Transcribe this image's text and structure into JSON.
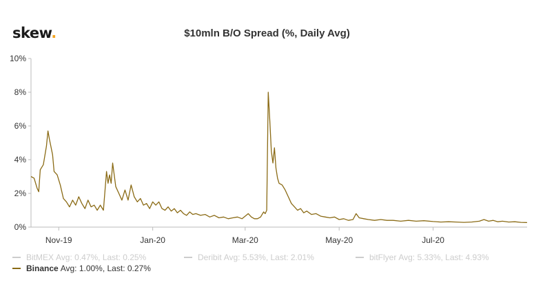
{
  "logo": {
    "text": "skew",
    "dot": "."
  },
  "chart_data": {
    "type": "line",
    "title": "$10mln B/O Spread (%, Daily Avg)",
    "xlabel": "",
    "ylabel": "",
    "ylim": [
      0,
      10
    ],
    "ytick_values": [
      0,
      2,
      4,
      6,
      8,
      10
    ],
    "ytick_labels": [
      "0%",
      "2%",
      "4%",
      "6%",
      "8%",
      "10%"
    ],
    "xlim": [
      "2019-10-14",
      "2020-08-31"
    ],
    "xticks": [
      {
        "date": "2019-11-01",
        "label": "Nov-19"
      },
      {
        "date": "2020-01-01",
        "label": "Jan-20"
      },
      {
        "date": "2020-03-01",
        "label": "Mar-20"
      },
      {
        "date": "2020-05-01",
        "label": "May-20"
      },
      {
        "date": "2020-07-01",
        "label": "Jul-20"
      }
    ],
    "grid": false,
    "legend_position": "bottom-left",
    "series": [
      {
        "name": "BitMEX",
        "stats": "Avg: 0.47%, Last: 0.25%",
        "color": "#cccccc",
        "visible": false
      },
      {
        "name": "Deribit",
        "stats": "Avg: 5.53%, Last: 2.01%",
        "color": "#cccccc",
        "visible": false
      },
      {
        "name": "bitFlyer",
        "stats": "Avg: 5.33%, Last: 4.93%",
        "color": "#cccccc",
        "visible": false
      },
      {
        "name": "Binance",
        "stats": "Avg: 1.00%, Last: 0.27%",
        "color": "#8a6a14",
        "visible": true,
        "points": [
          [
            "2019-10-14",
            3.0
          ],
          [
            "2019-10-16",
            2.9
          ],
          [
            "2019-10-18",
            2.3
          ],
          [
            "2019-10-19",
            2.1
          ],
          [
            "2019-10-20",
            3.4
          ],
          [
            "2019-10-22",
            3.7
          ],
          [
            "2019-10-24",
            4.8
          ],
          [
            "2019-10-25",
            5.7
          ],
          [
            "2019-10-26",
            5.2
          ],
          [
            "2019-10-28",
            4.3
          ],
          [
            "2019-10-29",
            3.3
          ],
          [
            "2019-10-31",
            3.1
          ],
          [
            "2019-11-02",
            2.5
          ],
          [
            "2019-11-04",
            1.7
          ],
          [
            "2019-11-06",
            1.5
          ],
          [
            "2019-11-08",
            1.2
          ],
          [
            "2019-11-10",
            1.6
          ],
          [
            "2019-11-12",
            1.3
          ],
          [
            "2019-11-14",
            1.8
          ],
          [
            "2019-11-16",
            1.4
          ],
          [
            "2019-11-18",
            1.1
          ],
          [
            "2019-11-20",
            1.6
          ],
          [
            "2019-11-22",
            1.2
          ],
          [
            "2019-11-24",
            1.3
          ],
          [
            "2019-11-26",
            1.0
          ],
          [
            "2019-11-28",
            1.3
          ],
          [
            "2019-11-30",
            1.0
          ],
          [
            "2019-12-02",
            3.3
          ],
          [
            "2019-12-03",
            2.6
          ],
          [
            "2019-12-04",
            3.1
          ],
          [
            "2019-12-05",
            2.6
          ],
          [
            "2019-12-06",
            3.8
          ],
          [
            "2019-12-08",
            2.4
          ],
          [
            "2019-12-10",
            2.0
          ],
          [
            "2019-12-12",
            1.6
          ],
          [
            "2019-12-14",
            2.2
          ],
          [
            "2019-12-16",
            1.6
          ],
          [
            "2019-12-18",
            2.5
          ],
          [
            "2019-12-20",
            1.8
          ],
          [
            "2019-12-22",
            1.5
          ],
          [
            "2019-12-24",
            1.7
          ],
          [
            "2019-12-26",
            1.3
          ],
          [
            "2019-12-28",
            1.4
          ],
          [
            "2019-12-30",
            1.1
          ],
          [
            "2020-01-01",
            1.5
          ],
          [
            "2020-01-03",
            1.3
          ],
          [
            "2020-01-05",
            1.5
          ],
          [
            "2020-01-07",
            1.1
          ],
          [
            "2020-01-09",
            1.0
          ],
          [
            "2020-01-11",
            1.2
          ],
          [
            "2020-01-13",
            0.95
          ],
          [
            "2020-01-15",
            1.1
          ],
          [
            "2020-01-17",
            0.85
          ],
          [
            "2020-01-19",
            1.0
          ],
          [
            "2020-01-21",
            0.8
          ],
          [
            "2020-01-23",
            0.7
          ],
          [
            "2020-01-25",
            0.9
          ],
          [
            "2020-01-27",
            0.75
          ],
          [
            "2020-01-29",
            0.8
          ],
          [
            "2020-02-01",
            0.7
          ],
          [
            "2020-02-04",
            0.75
          ],
          [
            "2020-02-07",
            0.6
          ],
          [
            "2020-02-10",
            0.7
          ],
          [
            "2020-02-13",
            0.55
          ],
          [
            "2020-02-16",
            0.6
          ],
          [
            "2020-02-19",
            0.5
          ],
          [
            "2020-02-22",
            0.55
          ],
          [
            "2020-02-25",
            0.6
          ],
          [
            "2020-02-28",
            0.5
          ],
          [
            "2020-03-01",
            0.65
          ],
          [
            "2020-03-03",
            0.8
          ],
          [
            "2020-03-05",
            0.6
          ],
          [
            "2020-03-07",
            0.5
          ],
          [
            "2020-03-09",
            0.5
          ],
          [
            "2020-03-11",
            0.6
          ],
          [
            "2020-03-13",
            0.9
          ],
          [
            "2020-03-14",
            0.8
          ],
          [
            "2020-03-15",
            1.0
          ],
          [
            "2020-03-16",
            8.0
          ],
          [
            "2020-03-17",
            6.3
          ],
          [
            "2020-03-18",
            4.5
          ],
          [
            "2020-03-19",
            3.8
          ],
          [
            "2020-03-20",
            4.7
          ],
          [
            "2020-03-21",
            3.5
          ],
          [
            "2020-03-22",
            2.9
          ],
          [
            "2020-03-23",
            2.6
          ],
          [
            "2020-03-25",
            2.5
          ],
          [
            "2020-03-27",
            2.2
          ],
          [
            "2020-03-29",
            1.8
          ],
          [
            "2020-03-31",
            1.4
          ],
          [
            "2020-04-02",
            1.2
          ],
          [
            "2020-04-04",
            1.0
          ],
          [
            "2020-04-06",
            1.1
          ],
          [
            "2020-04-08",
            0.85
          ],
          [
            "2020-04-10",
            0.95
          ],
          [
            "2020-04-13",
            0.75
          ],
          [
            "2020-04-16",
            0.8
          ],
          [
            "2020-04-19",
            0.65
          ],
          [
            "2020-04-22",
            0.6
          ],
          [
            "2020-04-25",
            0.55
          ],
          [
            "2020-04-28",
            0.6
          ],
          [
            "2020-05-01",
            0.45
          ],
          [
            "2020-05-04",
            0.5
          ],
          [
            "2020-05-07",
            0.4
          ],
          [
            "2020-05-10",
            0.45
          ],
          [
            "2020-05-12",
            0.8
          ],
          [
            "2020-05-14",
            0.55
          ],
          [
            "2020-05-17",
            0.5
          ],
          [
            "2020-05-20",
            0.45
          ],
          [
            "2020-05-24",
            0.4
          ],
          [
            "2020-05-28",
            0.45
          ],
          [
            "2020-06-01",
            0.4
          ],
          [
            "2020-06-05",
            0.4
          ],
          [
            "2020-06-10",
            0.35
          ],
          [
            "2020-06-15",
            0.4
          ],
          [
            "2020-06-20",
            0.35
          ],
          [
            "2020-06-25",
            0.38
          ],
          [
            "2020-07-01",
            0.33
          ],
          [
            "2020-07-06",
            0.3
          ],
          [
            "2020-07-11",
            0.32
          ],
          [
            "2020-07-16",
            0.3
          ],
          [
            "2020-07-21",
            0.28
          ],
          [
            "2020-07-26",
            0.3
          ],
          [
            "2020-07-31",
            0.35
          ],
          [
            "2020-08-03",
            0.45
          ],
          [
            "2020-08-06",
            0.35
          ],
          [
            "2020-08-09",
            0.4
          ],
          [
            "2020-08-12",
            0.32
          ],
          [
            "2020-08-15",
            0.35
          ],
          [
            "2020-08-19",
            0.3
          ],
          [
            "2020-08-23",
            0.32
          ],
          [
            "2020-08-27",
            0.28
          ],
          [
            "2020-08-31",
            0.27
          ]
        ]
      }
    ]
  }
}
